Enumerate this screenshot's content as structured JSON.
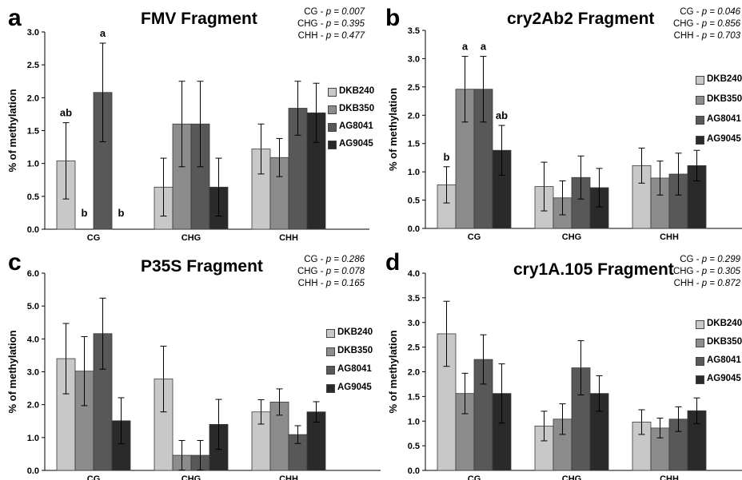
{
  "series_colors": [
    "#c8c8c8",
    "#8c8c8c",
    "#585858",
    "#2a2a2a"
  ],
  "chart_data": [
    {
      "type": "bar",
      "panel_letter": "a",
      "title": "FMV Fragment",
      "p_values": [
        {
          "label": "CG - ",
          "p": "p = 0.007"
        },
        {
          "label": "CHG - ",
          "p": "p = 0.395"
        },
        {
          "label": "CHH - ",
          "p": "p = 0.477"
        }
      ],
      "ylabel": "% of methylation",
      "xlabel": "",
      "ylim": [
        0,
        3.0
      ],
      "yticks": [
        "0.0",
        "0.5",
        "1.0",
        "1.5",
        "2.0",
        "2.5",
        "3.0"
      ],
      "categories": [
        "CG",
        "CHG",
        "CHH"
      ],
      "legend_position": "right",
      "series": [
        {
          "name": "DKB240",
          "values": [
            1.04,
            0.64,
            1.22
          ],
          "errors": [
            0.58,
            0.44,
            0.38
          ]
        },
        {
          "name": "DKB350",
          "values": [
            0,
            1.6,
            1.09
          ],
          "errors": [
            0,
            0.65,
            0.29
          ]
        },
        {
          "name": "AG8041",
          "values": [
            2.08,
            1.6,
            1.84
          ],
          "errors": [
            0.75,
            0.65,
            0.41
          ]
        },
        {
          "name": "AG9045",
          "values": [
            0,
            0.64,
            1.77
          ],
          "errors": [
            0,
            0.44,
            0.45
          ]
        }
      ],
      "annotations": [
        {
          "category": 0,
          "series": 0,
          "text": "ab"
        },
        {
          "category": 0,
          "series": 1,
          "text": "b"
        },
        {
          "category": 0,
          "series": 2,
          "text": "a"
        },
        {
          "category": 0,
          "series": 3,
          "text": "b"
        }
      ]
    },
    {
      "type": "bar",
      "panel_letter": "b",
      "title": "cry2Ab2 Fragment",
      "p_values": [
        {
          "label": "CG - ",
          "p": "p = 0.046"
        },
        {
          "label": "CHG - ",
          "p": "p = 0.856"
        },
        {
          "label": "CHH - ",
          "p": "p = 0.703"
        }
      ],
      "ylabel": "% of methylation",
      "xlabel": "",
      "ylim": [
        0,
        3.5
      ],
      "yticks": [
        "0.0",
        "0.5",
        "1.0",
        "1.5",
        "2.0",
        "2.5",
        "3.0",
        "3.5"
      ],
      "categories": [
        "CG",
        "CHG",
        "CHH"
      ],
      "legend_position": "right",
      "series": [
        {
          "name": "DKB240",
          "values": [
            0.77,
            0.74,
            1.11
          ],
          "errors": [
            0.32,
            0.43,
            0.31
          ]
        },
        {
          "name": "DKB350",
          "values": [
            2.46,
            0.54,
            0.89
          ],
          "errors": [
            0.58,
            0.3,
            0.3
          ]
        },
        {
          "name": "AG8041",
          "values": [
            2.46,
            0.9,
            0.96
          ],
          "errors": [
            0.58,
            0.38,
            0.37
          ]
        },
        {
          "name": "AG9045",
          "values": [
            1.38,
            0.72,
            1.11
          ],
          "errors": [
            0.44,
            0.34,
            0.27
          ]
        }
      ],
      "annotations": [
        {
          "category": 0,
          "series": 0,
          "text": "b"
        },
        {
          "category": 0,
          "series": 1,
          "text": "a"
        },
        {
          "category": 0,
          "series": 2,
          "text": "a"
        },
        {
          "category": 0,
          "series": 3,
          "text": "ab"
        }
      ]
    },
    {
      "type": "bar",
      "panel_letter": "c",
      "title": "P35S Fragment",
      "p_values": [
        {
          "label": "CG - ",
          "p": "p = 0.286"
        },
        {
          "label": "CHG - ",
          "p": "p = 0.078"
        },
        {
          "label": "CHH - ",
          "p": "p = 0.165"
        }
      ],
      "ylabel": "% of methylation",
      "xlabel": "",
      "ylim": [
        0,
        6.0
      ],
      "yticks": [
        "0.0",
        "1.0",
        "2.0",
        "3.0",
        "4.0",
        "5.0",
        "6.0"
      ],
      "categories": [
        "CG",
        "CHG",
        "CHH"
      ],
      "legend_position": "right",
      "series": [
        {
          "name": "DKB240",
          "values": [
            3.4,
            2.78,
            1.78
          ],
          "errors": [
            1.07,
            1.0,
            0.37
          ]
        },
        {
          "name": "DKB350",
          "values": [
            3.02,
            0.46,
            2.08
          ],
          "errors": [
            1.05,
            0.45,
            0.4
          ]
        },
        {
          "name": "AG8041",
          "values": [
            4.16,
            0.46,
            1.09
          ],
          "errors": [
            1.08,
            0.45,
            0.27
          ]
        },
        {
          "name": "AG9045",
          "values": [
            1.51,
            1.4,
            1.78
          ],
          "errors": [
            0.7,
            0.76,
            0.31
          ]
        }
      ],
      "annotations": []
    },
    {
      "type": "bar",
      "panel_letter": "d",
      "title": "cry1A.105 Fragment",
      "p_values": [
        {
          "label": "CG - ",
          "p": "p = 0.299"
        },
        {
          "label": "CHG - ",
          "p": "p = 0.305"
        },
        {
          "label": "CHH - ",
          "p": "p = 0.872"
        }
      ],
      "ylabel": "% of methylation",
      "xlabel": "",
      "ylim": [
        0,
        4.0
      ],
      "yticks": [
        "0.0",
        "0.5",
        "1.0",
        "1.5",
        "2.0",
        "2.5",
        "3.0",
        "3.5",
        "4.0"
      ],
      "categories": [
        "CG",
        "CHG",
        "CHH"
      ],
      "legend_position": "right",
      "series": [
        {
          "name": "DKB240",
          "values": [
            2.77,
            0.9,
            0.98
          ],
          "errors": [
            0.66,
            0.3,
            0.25
          ]
        },
        {
          "name": "DKB350",
          "values": [
            1.56,
            1.04,
            0.86
          ],
          "errors": [
            0.41,
            0.31,
            0.2
          ]
        },
        {
          "name": "AG8041",
          "values": [
            2.25,
            2.08,
            1.04
          ],
          "errors": [
            0.5,
            0.55,
            0.25
          ]
        },
        {
          "name": "AG9045",
          "values": [
            1.56,
            1.56,
            1.21
          ],
          "errors": [
            0.6,
            0.36,
            0.26
          ]
        }
      ],
      "annotations": []
    }
  ]
}
